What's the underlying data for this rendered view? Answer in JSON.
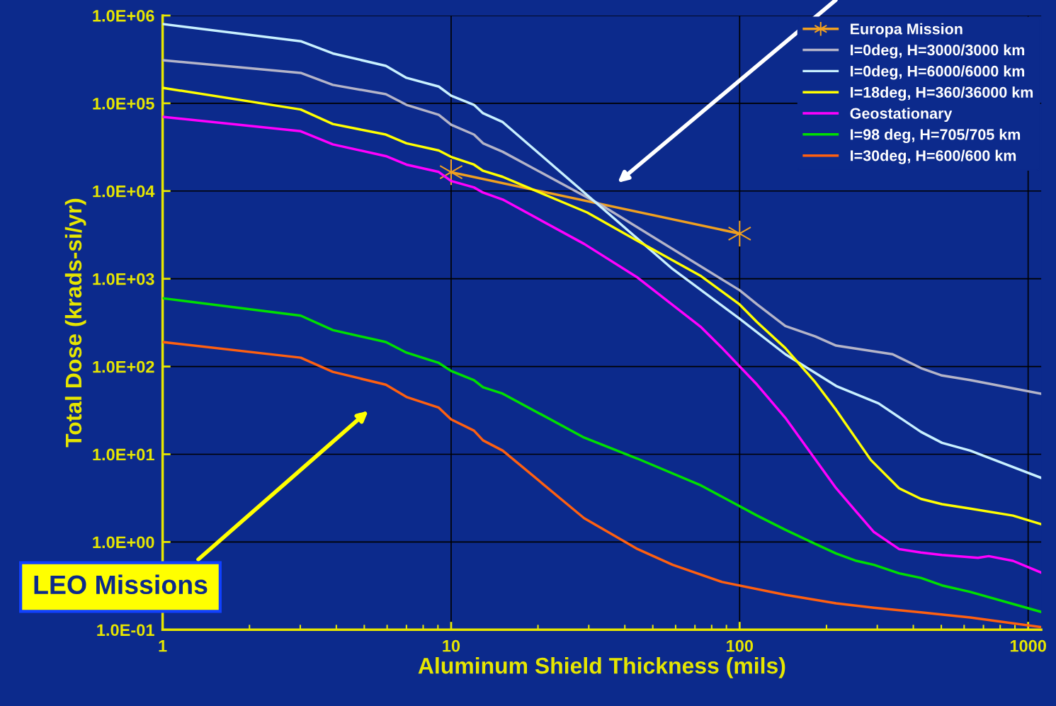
{
  "chart_data": {
    "type": "line",
    "xlabel": "Aluminum Shield Thickness (mils)",
    "ylabel": "Total Dose (krads-si/yr)",
    "log": "xy",
    "grid": true,
    "legend": "top right",
    "marker": "none",
    "line_style": "solid",
    "xlim": [
      1,
      1110
    ],
    "xticks": [
      1,
      10,
      100,
      1000
    ],
    "ylim": [
      0.1,
      1000000
    ],
    "yticks": [
      {
        "value": 0.1,
        "label": "1.0E-01"
      },
      {
        "value": 1,
        "label": "1.0E+00"
      },
      {
        "value": 10,
        "label": "1.0E+01"
      },
      {
        "value": 100,
        "label": "1.0E+02"
      },
      {
        "value": 1000,
        "label": "1.0E+03"
      },
      {
        "value": 10000,
        "label": "1.0E+04"
      },
      {
        "value": 100000,
        "label": "1.0E+05"
      },
      {
        "value": 1000000,
        "label": "1.0E+06"
      }
    ],
    "annotations": [
      "LEO Missions"
    ],
    "series": [
      {
        "name": "Europa Mission",
        "color": "#f0a020",
        "marker": "cross",
        "x": [
          10,
          100
        ],
        "values": [
          16400,
          3270
        ]
      },
      {
        "name": "I=0deg, H=3000/3000 km",
        "color": "#b4b4c8",
        "x": [
          1,
          3.01,
          3.89,
          5.94,
          7.0,
          9.06,
          10,
          12.0,
          12.9,
          15.1,
          33.2,
          100,
          115,
          144,
          183,
          216,
          339,
          425,
          503,
          630,
          746,
          1107
        ],
        "values": [
          310000,
          222000,
          162000,
          127000,
          96000,
          74000,
          57000,
          44000,
          35000,
          28000,
          6900,
          740,
          510,
          290,
          220,
          173,
          138,
          96,
          79,
          70,
          63,
          49
        ]
      },
      {
        "name": "I=0deg, H=6000/6000 km",
        "color": "#c8f0ff",
        "x": [
          1,
          3.01,
          3.89,
          5.94,
          7.0,
          9.06,
          10,
          12.0,
          12.9,
          15.1,
          58.6,
          100,
          144,
          216,
          303,
          425,
          503,
          630,
          746,
          1107
        ],
        "values": [
          800000,
          510000,
          370000,
          267000,
          195000,
          155000,
          122000,
          96000,
          77000,
          61000,
          1290,
          350,
          138,
          60,
          38,
          18,
          13.5,
          11,
          8.9,
          5.4
        ]
      },
      {
        "name": "I=18deg, H=360/36000 km",
        "color": "#ffff00",
        "x": [
          1,
          3.01,
          3.89,
          5.94,
          7.0,
          9.06,
          10,
          12.0,
          12.9,
          15.1,
          29.6,
          44.3,
          73.6,
          100,
          115,
          144,
          183,
          216,
          285,
          357,
          425,
          503,
          630,
          886,
          1107
        ],
        "values": [
          150000,
          85000,
          58000,
          44000,
          35000,
          29000,
          24500,
          20000,
          17000,
          14500,
          5700,
          2700,
          1070,
          510,
          320,
          162,
          66,
          32,
          8.6,
          4.1,
          3.1,
          2.7,
          2.4,
          2.0,
          1.6
        ]
      },
      {
        "name": "Geostationary",
        "color": "#ff00ff",
        "x": [
          1,
          3.01,
          3.89,
          5.94,
          7.0,
          9.06,
          10,
          12.0,
          12.9,
          15.1,
          28.9,
          44.3,
          73.6,
          87,
          115,
          144,
          216,
          254,
          292,
          357,
          425,
          503,
          670,
          730,
          886,
          1107
        ],
        "values": [
          70000,
          48000,
          34000,
          25000,
          20000,
          16500,
          13000,
          11000,
          9600,
          8000,
          2500,
          1030,
          280,
          162,
          62,
          26,
          4.1,
          2.2,
          1.3,
          0.83,
          0.76,
          0.71,
          0.66,
          0.69,
          0.61,
          0.45
        ]
      },
      {
        "name": "I=98 deg, H=705/705 km",
        "color": "#00e000",
        "x": [
          1,
          3.01,
          3.89,
          5.94,
          7.0,
          9.06,
          10,
          12.0,
          12.9,
          15.1,
          28.9,
          44.3,
          73.6,
          115,
          144,
          183,
          216,
          254,
          292,
          357,
          425,
          503,
          630,
          1107
        ],
        "values": [
          600,
          380,
          260,
          190,
          144,
          110,
          89,
          70,
          58,
          49,
          15.5,
          8.9,
          4.4,
          2.0,
          1.38,
          0.95,
          0.74,
          0.61,
          0.55,
          0.44,
          0.39,
          0.32,
          0.27,
          0.16
        ]
      },
      {
        "name": "I=30deg, H=600/600 km",
        "color": "#ff6010",
        "x": [
          1,
          3.01,
          3.89,
          5.94,
          7.0,
          9.06,
          10,
          12.0,
          12.9,
          15.1,
          28.9,
          44.3,
          58.6,
          87,
          144,
          216,
          292,
          425,
          630,
          1107
        ],
        "values": [
          190,
          126,
          87,
          62,
          45,
          34,
          25,
          18.6,
          14.4,
          11,
          1.87,
          0.83,
          0.55,
          0.35,
          0.25,
          0.2,
          0.178,
          0.158,
          0.138,
          0.107
        ]
      }
    ]
  }
}
